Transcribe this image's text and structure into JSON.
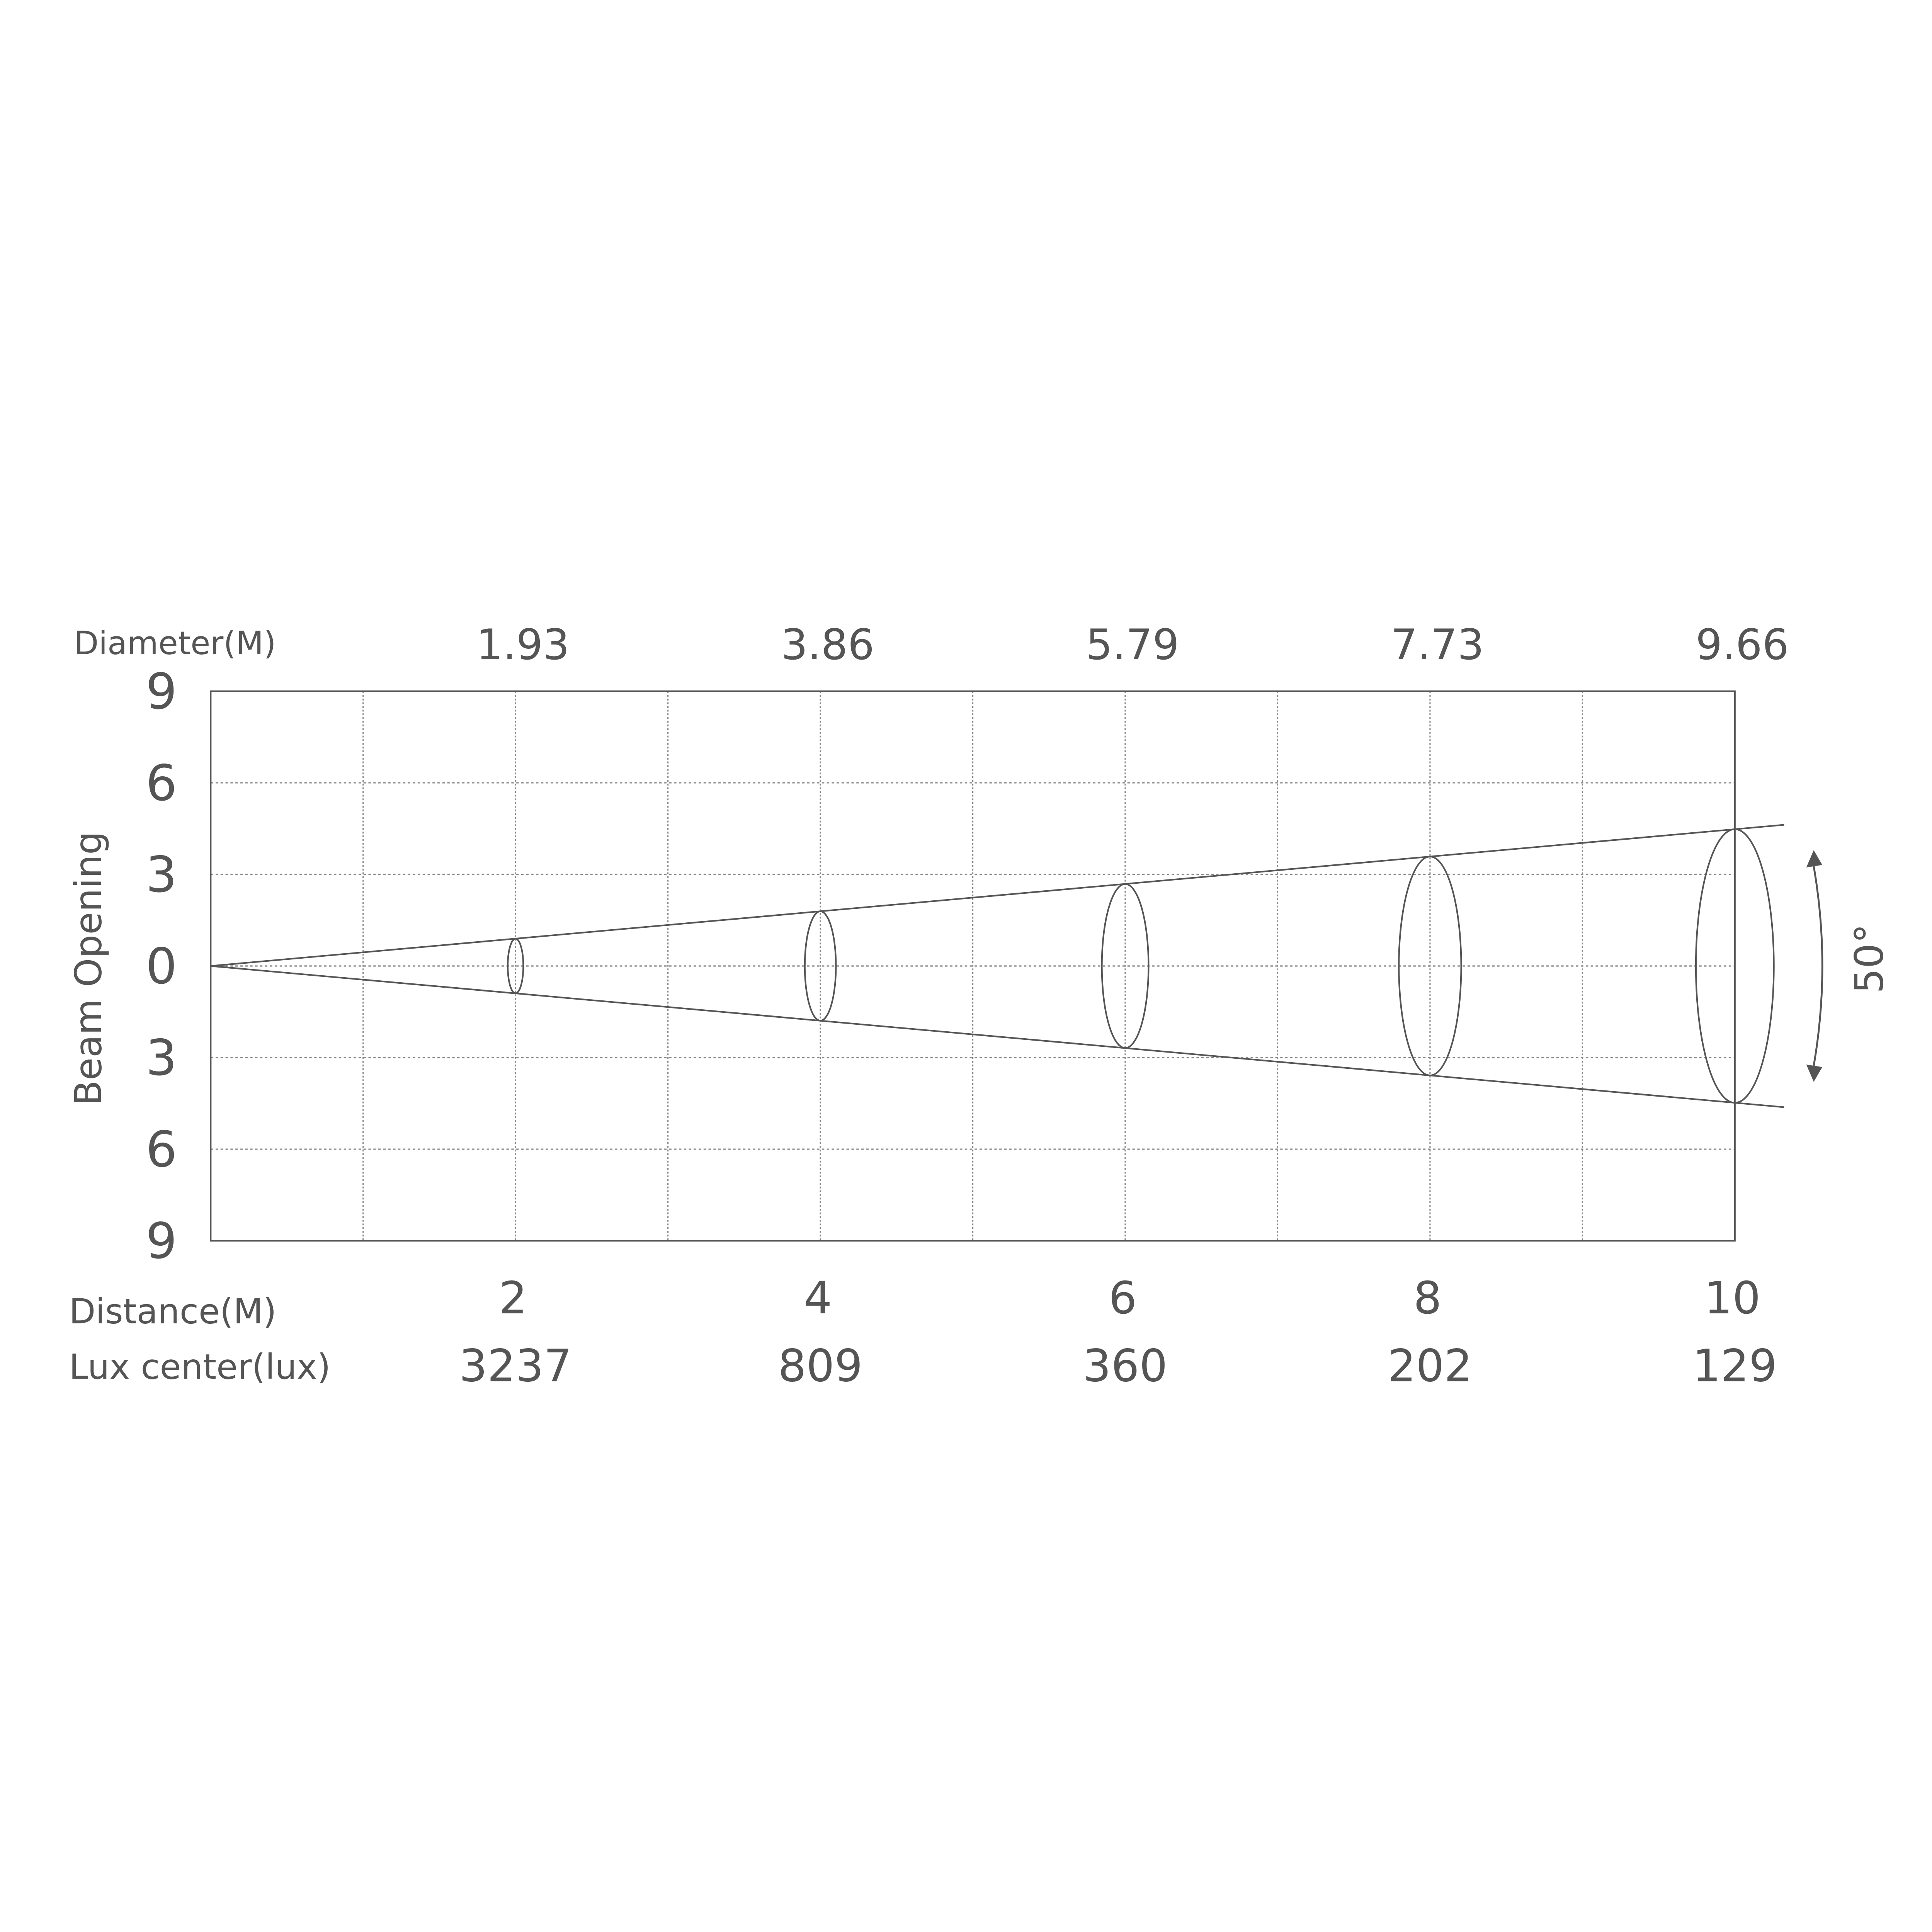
{
  "chart_data": {
    "type": "diagram-beam",
    "ylabel": "Beam Opening",
    "y_tick_labels": [
      "9",
      "6",
      "3",
      "0",
      "3",
      "6",
      "9"
    ],
    "diameter_label": "Diameter(M)",
    "distance_label": "Distance(M)",
    "lux_label": "Lux center(lux)",
    "beam_angle_label": "50°",
    "beam_angle_deg": 50,
    "xlim": [
      0,
      10
    ],
    "ylim": [
      -9,
      9
    ],
    "grid": true,
    "points": [
      {
        "distance": "2",
        "diameter": "1.93",
        "lux": "3237",
        "d": 2,
        "dia": 1.93
      },
      {
        "distance": "4",
        "diameter": "3.86",
        "lux": "809",
        "d": 4,
        "dia": 3.86
      },
      {
        "distance": "6",
        "diameter": "5.79",
        "lux": "360",
        "d": 6,
        "dia": 5.79
      },
      {
        "distance": "8",
        "diameter": "7.73",
        "lux": "202",
        "d": 8,
        "dia": 7.73
      },
      {
        "distance": "10",
        "diameter": "9.66",
        "lux": "129",
        "d": 10,
        "dia": 9.66
      }
    ],
    "colors": {
      "ink": "#555555",
      "grid": "#888888"
    }
  }
}
